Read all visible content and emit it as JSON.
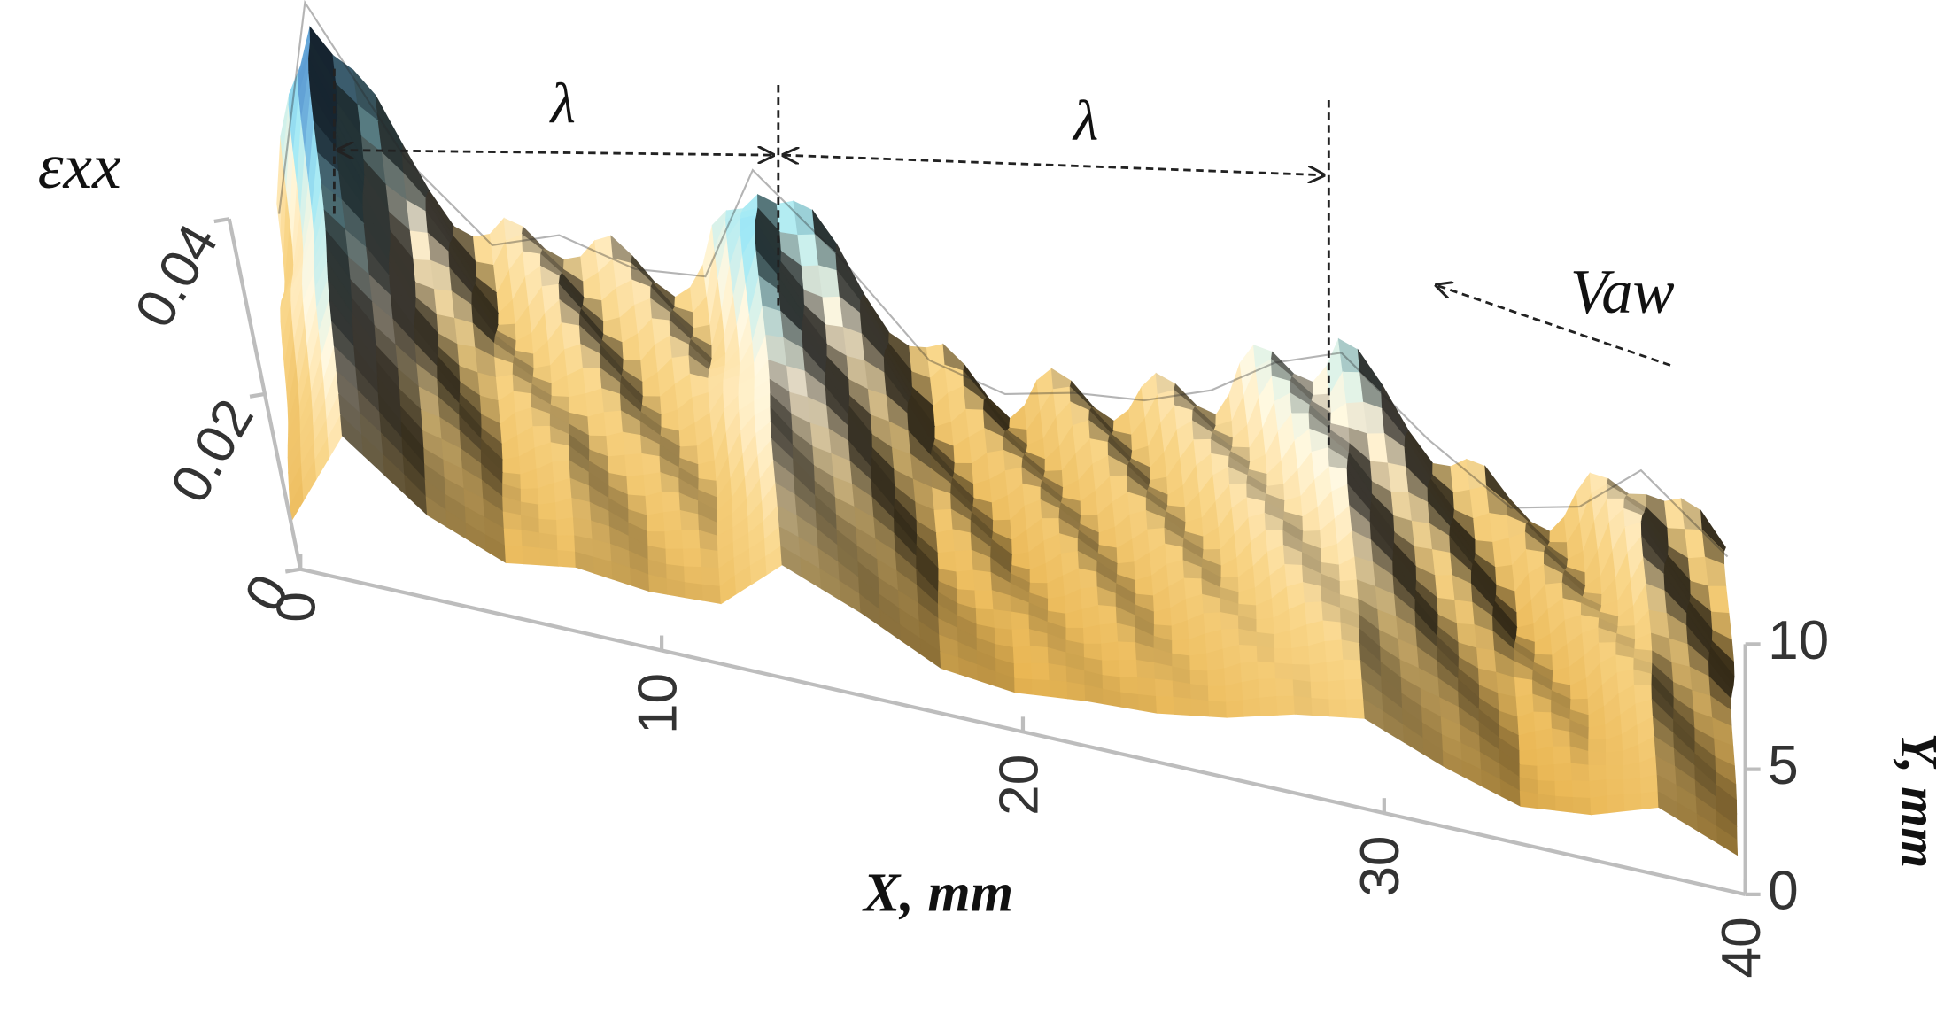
{
  "chart_data": {
    "type": "surface",
    "z_label": "εxx",
    "x_label": "X, mm",
    "y_label": "Y, mm",
    "annotations": [
      "λ",
      "λ",
      "Vaw"
    ],
    "xlim": [
      0,
      40
    ],
    "xticks": [
      0,
      10,
      20,
      30,
      40
    ],
    "ylim": [
      0,
      10
    ],
    "yticks": [
      0,
      5,
      10
    ],
    "zlim": [
      0,
      0.04
    ],
    "zticks": [
      0,
      0.02,
      0.04
    ],
    "ridge": {
      "x": [
        0,
        2,
        4,
        6,
        8,
        10,
        12,
        14,
        16,
        18,
        20,
        22,
        24,
        26,
        28,
        30,
        32,
        34,
        36,
        38,
        40
      ],
      "values": [
        0.012,
        0.038,
        0.022,
        0.014,
        0.017,
        0.015,
        0.016,
        0.03,
        0.022,
        0.012,
        0.01,
        0.012,
        0.013,
        0.016,
        0.021,
        0.024,
        0.016,
        0.01,
        0.012,
        0.018,
        0.01
      ]
    }
  }
}
